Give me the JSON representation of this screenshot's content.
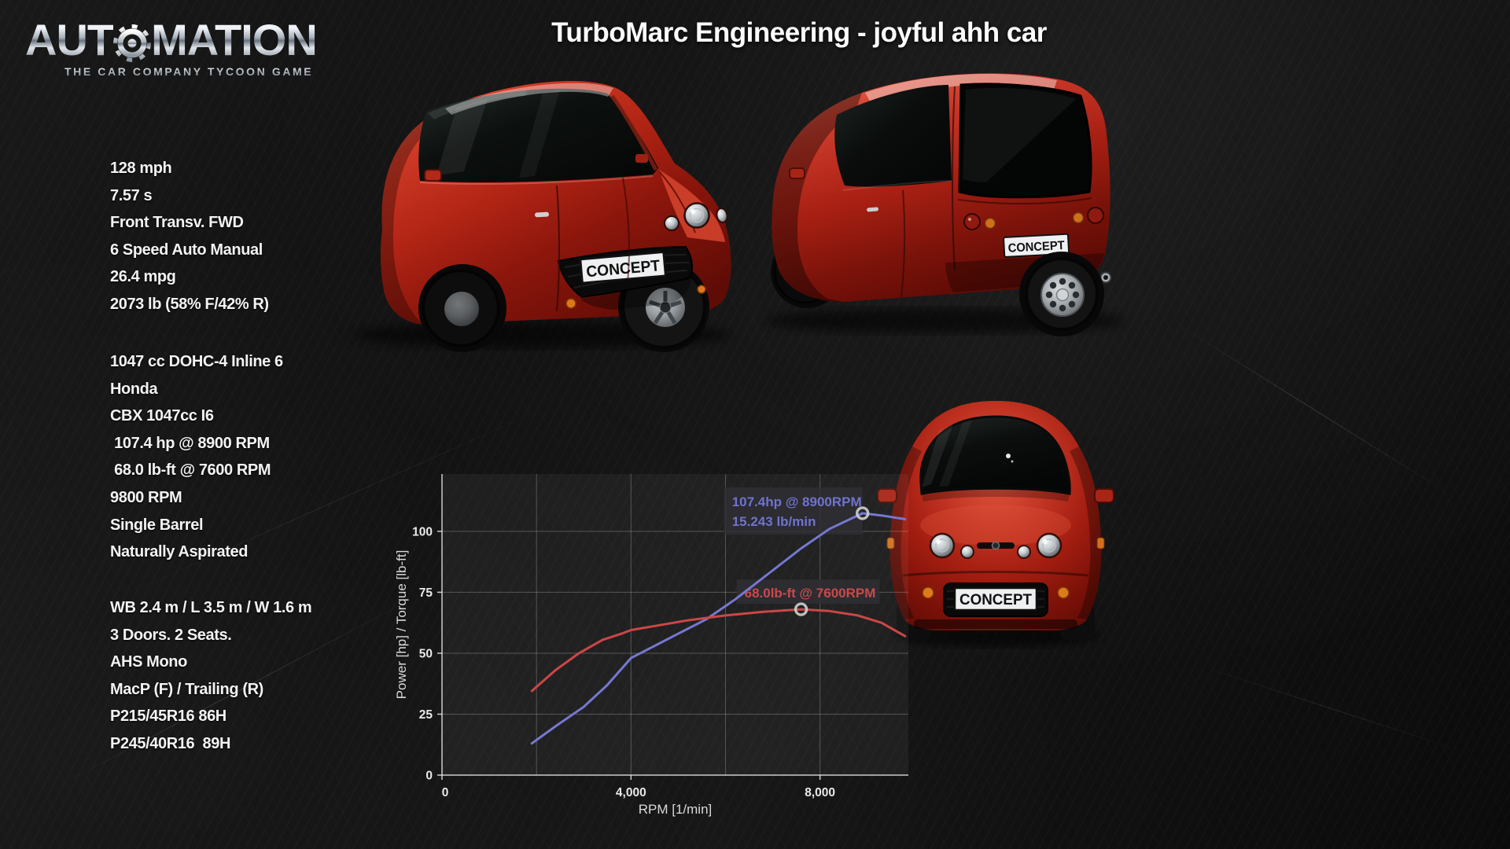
{
  "window": {
    "title": "TurboMarc Engineering - joyful ahh car"
  },
  "logo": {
    "word_start": "AUT",
    "word_end": "MATION",
    "tagline": "THE CAR COMPANY TYCOON GAME"
  },
  "specs": {
    "performance": [
      "128 mph",
      "7.57 s",
      "Front Transv. FWD",
      "6 Speed Auto Manual",
      "26.4 mpg",
      "2073 lb (58% F/42% R)"
    ],
    "engine": [
      "1047 cc DOHC-4 Inline 6",
      "Honda",
      "CBX 1047cc I6",
      " 107.4 hp @ 8900 RPM",
      " 68.0 lb-ft @ 7600 RPM",
      "9800 RPM",
      "Single Barrel",
      "Naturally Aspirated"
    ],
    "chassis": [
      "WB 2.4 m / L 3.5 m / W 1.6 m",
      "3 Doors. 2 Seats.",
      "AHS Mono",
      "MacP (F) / Trailing (R)",
      "P215/45R16 86H",
      "P245/40R16  89H"
    ]
  },
  "license_plate": "CONCEPT",
  "chart_data": {
    "type": "line",
    "title": "",
    "xlabel": "RPM [1/min]",
    "ylabel": "Power [hp] / Torque [lb-ft]",
    "xlim": [
      0,
      9870
    ],
    "ylim": [
      0,
      123.5
    ],
    "x_ticks": [
      0,
      4000,
      8000
    ],
    "x_tick_labels": [
      "0",
      "4,000",
      "8,000"
    ],
    "x_gridlines": [
      2000,
      4000,
      6000,
      8000
    ],
    "y_ticks": [
      0,
      25,
      50,
      75,
      100
    ],
    "grid": true,
    "legend_position": "none",
    "series": [
      {
        "name": "Power [hp]",
        "color": "#7678d2",
        "x": [
          1900,
          2400,
          3000,
          3500,
          4000,
          4300,
          5000,
          5600,
          6200,
          7000,
          7600,
          8200,
          8900,
          9300,
          9800
        ],
        "values": [
          13,
          20,
          28,
          37,
          48,
          51,
          58,
          64,
          72,
          84,
          93,
          101,
          107.4,
          106.5,
          105
        ]
      },
      {
        "name": "Torque [lb-ft]",
        "color": "#cc4646",
        "x": [
          1900,
          2400,
          2900,
          3400,
          3800,
          4000,
          4600,
          5200,
          6000,
          6800,
          7600,
          8200,
          8800,
          9300,
          9800
        ],
        "values": [
          34.5,
          43,
          50,
          55.5,
          58,
          59.5,
          61.5,
          63.5,
          65.5,
          67,
          68,
          67.3,
          65.5,
          62.5,
          57
        ]
      }
    ],
    "annotations": [
      {
        "id": "power-peak",
        "lines": [
          "107.4hp @ 8900RPM",
          "15.243 lb/min"
        ],
        "x": 8900,
        "y": 107.4,
        "color": "#7073cc"
      },
      {
        "id": "torque-peak",
        "lines": [
          "68.0lb-ft @ 7600RPM"
        ],
        "x": 7600,
        "y": 68,
        "color": "#c94a4a"
      }
    ]
  }
}
